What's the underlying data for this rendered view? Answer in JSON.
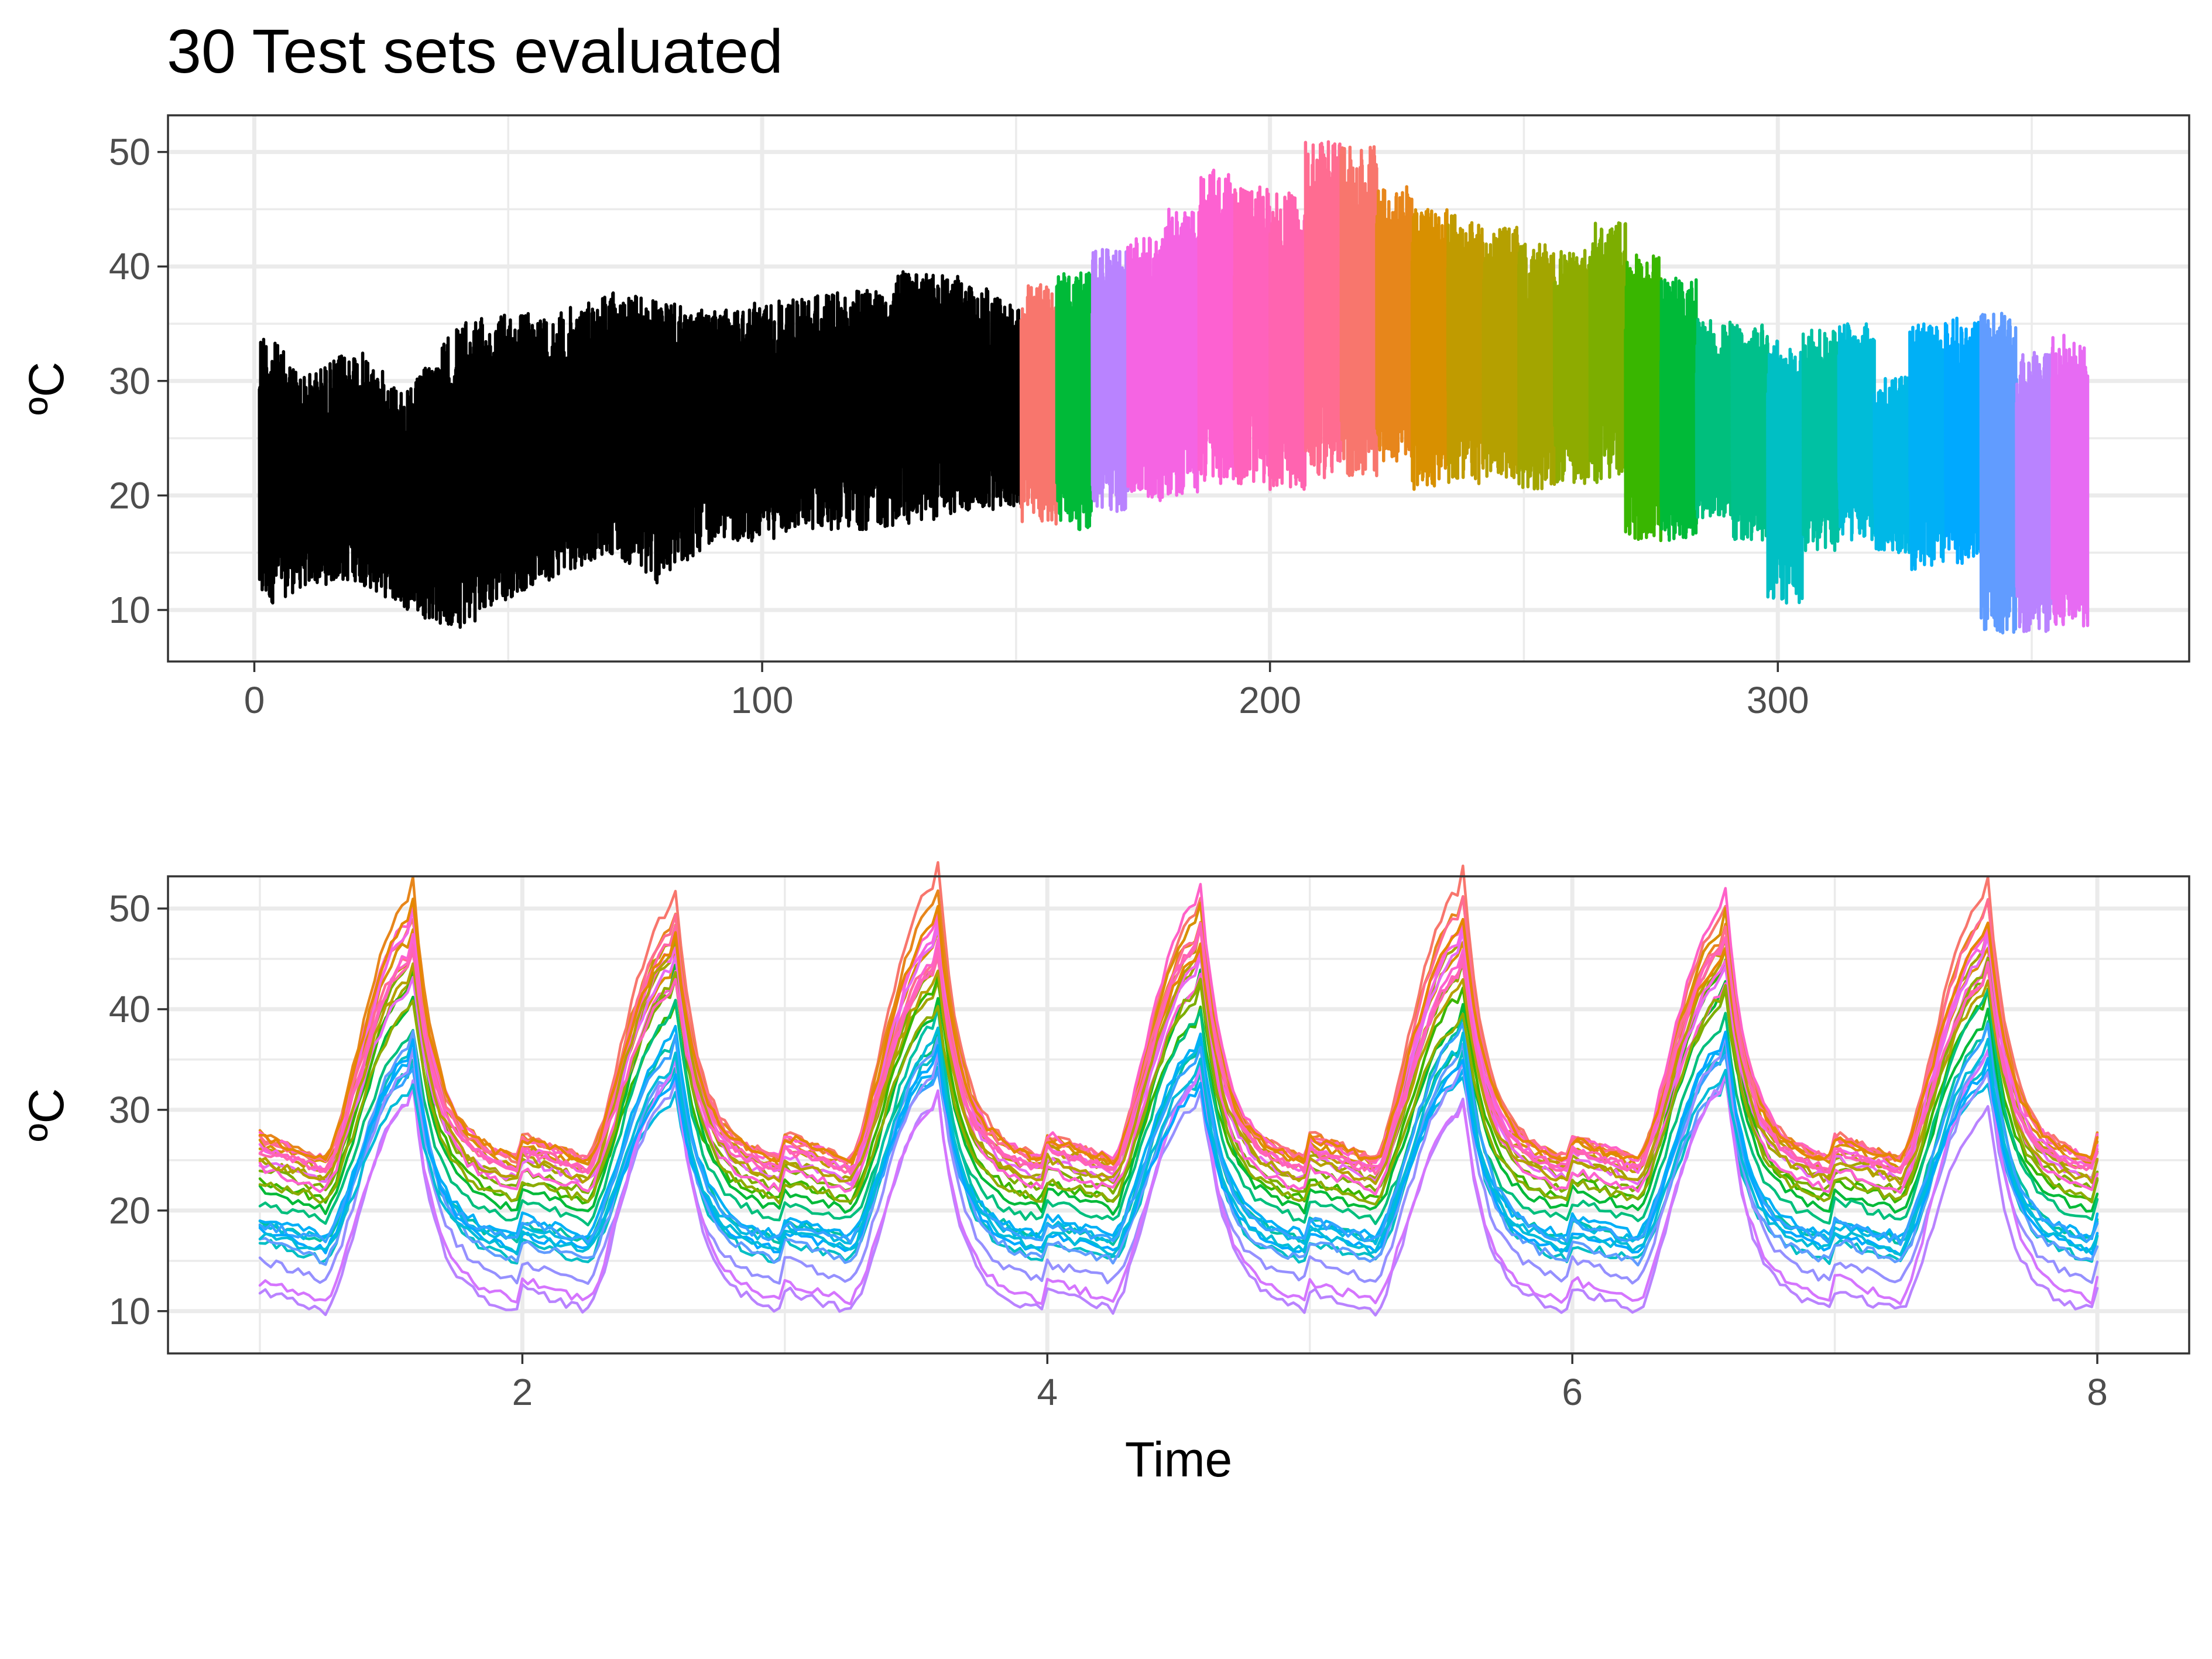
{
  "title": "30 Test sets evaluated",
  "chart_data": [
    {
      "type": "line",
      "title": "30 Test sets evaluated",
      "xlabel": "",
      "ylabel": "ºC",
      "xlim": [
        -17,
        381
      ],
      "ylim": [
        5.5,
        53.2
      ],
      "xticks": [
        0,
        100,
        200,
        300
      ],
      "yticks": [
        10,
        20,
        30,
        40,
        50
      ],
      "grid": true,
      "legend": "none",
      "training": {
        "x_range": [
          1,
          151
        ],
        "color": "#000000",
        "envelope_x": [
          1,
          10,
          20,
          30,
          40,
          50,
          60,
          70,
          80,
          90,
          100,
          110,
          120,
          130,
          140,
          151
        ],
        "envelope_max": [
          35,
          30.5,
          33,
          29,
          35,
          36,
          36,
          38,
          37,
          36,
          37,
          37.5,
          38,
          40,
          39,
          36.5
        ],
        "envelope_min": [
          10,
          12,
          12.5,
          10,
          8,
          11,
          13,
          15,
          12,
          16,
          16,
          17,
          17,
          17.5,
          18.5,
          19
        ]
      },
      "test_sets": [
        {
          "start": 151,
          "end": 158,
          "color": "#F8766D",
          "max": 38.5,
          "min": 17.5
        },
        {
          "start": 158,
          "end": 165,
          "color": "#00BA38",
          "max": 39.5,
          "min": 17
        },
        {
          "start": 165,
          "end": 172,
          "color": "#B983FF",
          "max": 41.5,
          "min": 18.5
        },
        {
          "start": 172,
          "end": 179,
          "color": "#F564E3",
          "max": 42.5,
          "min": 19.5
        },
        {
          "start": 179,
          "end": 186,
          "color": "#F564E3",
          "max": 45,
          "min": 20
        },
        {
          "start": 186,
          "end": 193,
          "color": "#FD61D1",
          "max": 48.5,
          "min": 21
        },
        {
          "start": 193,
          "end": 200,
          "color": "#FF62BC",
          "max": 47,
          "min": 21
        },
        {
          "start": 200,
          "end": 207,
          "color": "#FF64B0",
          "max": 46.5,
          "min": 20.5
        },
        {
          "start": 207,
          "end": 214,
          "color": "#FF6C91",
          "max": 51,
          "min": 21.5
        },
        {
          "start": 214,
          "end": 221,
          "color": "#F8766D",
          "max": 50.5,
          "min": 21.5
        },
        {
          "start": 221,
          "end": 228,
          "color": "#E7861B",
          "max": 47,
          "min": 23
        },
        {
          "start": 228,
          "end": 235,
          "color": "#D89000",
          "max": 45,
          "min": 20.5
        },
        {
          "start": 235,
          "end": 242,
          "color": "#C09B00",
          "max": 44.5,
          "min": 21
        },
        {
          "start": 242,
          "end": 249,
          "color": "#B5A000",
          "max": 43.5,
          "min": 21.5
        },
        {
          "start": 249,
          "end": 256,
          "color": "#A3A500",
          "max": 42,
          "min": 20.5
        },
        {
          "start": 256,
          "end": 263,
          "color": "#8EAB00",
          "max": 41.5,
          "min": 21
        },
        {
          "start": 263,
          "end": 270,
          "color": "#7CAE00",
          "max": 44,
          "min": 21
        },
        {
          "start": 270,
          "end": 277,
          "color": "#39B600",
          "max": 41,
          "min": 16
        },
        {
          "start": 277,
          "end": 284,
          "color": "#00BA38",
          "max": 39,
          "min": 16
        },
        {
          "start": 284,
          "end": 291,
          "color": "#00BF7D",
          "max": 35.5,
          "min": 18
        },
        {
          "start": 291,
          "end": 298,
          "color": "#00C08B",
          "max": 35,
          "min": 16
        },
        {
          "start": 298,
          "end": 305,
          "color": "#00BFC4",
          "max": 33.5,
          "min": 10.5
        },
        {
          "start": 305,
          "end": 312,
          "color": "#00C1A3",
          "max": 34.5,
          "min": 15
        },
        {
          "start": 312,
          "end": 319,
          "color": "#00BCD8",
          "max": 35,
          "min": 16
        },
        {
          "start": 319,
          "end": 326,
          "color": "#00B8E7",
          "max": 30.5,
          "min": 15
        },
        {
          "start": 326,
          "end": 333,
          "color": "#00B0F6",
          "max": 35,
          "min": 13.5
        },
        {
          "start": 333,
          "end": 340,
          "color": "#00A9FF",
          "max": 35.5,
          "min": 14
        },
        {
          "start": 340,
          "end": 347,
          "color": "#619CFF",
          "max": 36,
          "min": 8
        },
        {
          "start": 347,
          "end": 354,
          "color": "#B983FF",
          "max": 32.5,
          "min": 8
        },
        {
          "start": 354,
          "end": 361,
          "color": "#E76BF3",
          "max": 34,
          "min": 8.5
        }
      ]
    },
    {
      "type": "line",
      "title": "",
      "xlabel": "Time",
      "ylabel": "ºC",
      "xlim": [
        0.65,
        8.35
      ],
      "ylim": [
        5.8,
        53.2
      ],
      "xticks": [
        2,
        4,
        6,
        8
      ],
      "yticks": [
        10,
        20,
        30,
        40,
        50
      ],
      "grid": true,
      "legend": "none",
      "x_range": [
        1,
        8
      ],
      "periods": 7,
      "series_colors": [
        "#F8766D",
        "#E7861B",
        "#D89000",
        "#C09B00",
        "#A3A500",
        "#7CAE00",
        "#39B600",
        "#00BA38",
        "#00BF7D",
        "#00C1A3",
        "#00BFC4",
        "#00BAE0",
        "#00B0F6",
        "#35A2FF",
        "#619CFF",
        "#9590FF",
        "#B983FF",
        "#D575FE",
        "#E76BF3",
        "#F564E3",
        "#FF61C9",
        "#FF65AC",
        "#FF6C91",
        "#FD61D1",
        "#00A9FF",
        "#B5A000",
        "#8EAB00",
        "#00BCD8",
        "#E58700",
        "#FF62BC"
      ],
      "series_peaks": [
        50,
        49,
        46,
        45,
        44,
        42,
        41,
        40,
        38,
        36,
        34,
        33,
        35,
        35,
        34,
        33,
        31,
        32,
        44,
        46,
        48,
        45,
        47,
        43,
        34,
        43,
        41,
        34,
        47,
        44
      ],
      "series_baselines": [
        25,
        25,
        24.5,
        24,
        23,
        22,
        21,
        20,
        19,
        17,
        15,
        17,
        17.5,
        17,
        15,
        13,
        10,
        11,
        23,
        24,
        25,
        24,
        25,
        22,
        16,
        23,
        21,
        16,
        25,
        24
      ]
    }
  ]
}
